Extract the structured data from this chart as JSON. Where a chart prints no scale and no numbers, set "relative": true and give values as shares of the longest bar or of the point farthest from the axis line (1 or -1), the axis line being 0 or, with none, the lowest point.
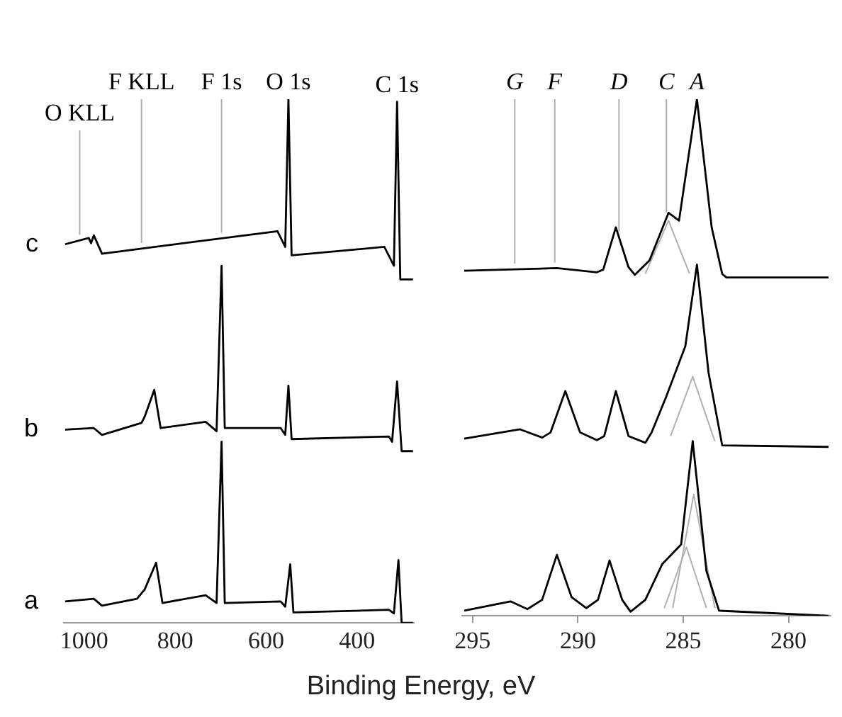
{
  "chart_data": [
    {
      "type": "line",
      "relative": true,
      "xlabel": "Binding Energy, eV",
      "xlim": [
        1045,
        275
      ],
      "xticks": [
        1000,
        800,
        600,
        400
      ],
      "grid": false,
      "legend": false,
      "marker": "none",
      "line_style": "solid",
      "series": [
        {
          "name": "c",
          "color": "#000000",
          "x": [
            1042,
            990,
            985,
            979,
            961,
            575,
            558,
            551,
            544,
            340,
            319,
            312,
            305,
            277
          ],
          "values": [
            0.723,
            0.735,
            0.725,
            0.74,
            0.705,
            0.748,
            0.718,
            1.0,
            0.702,
            0.718,
            0.682,
            0.995,
            0.656,
            0.656
          ]
        },
        {
          "name": "b",
          "color": "#000000",
          "x": [
            1042,
            979,
            961,
            874,
            867,
            846,
            832,
            733,
            709,
            698,
            691,
            568,
            558,
            551,
            544,
            330,
            323,
            312,
            302,
            277
          ],
          "values": [
            0.369,
            0.372,
            0.359,
            0.382,
            0.394,
            0.445,
            0.372,
            0.384,
            0.366,
            0.682,
            0.372,
            0.372,
            0.359,
            0.453,
            0.351,
            0.356,
            0.346,
            0.461,
            0.328,
            0.328
          ]
        },
        {
          "name": "a",
          "color": "#000000",
          "x": [
            1042,
            979,
            961,
            884,
            867,
            842,
            828,
            733,
            709,
            698,
            691,
            568,
            558,
            547,
            540,
            330,
            319,
            309,
            302,
            277
          ],
          "values": [
            0.041,
            0.046,
            0.033,
            0.046,
            0.064,
            0.115,
            0.038,
            0.053,
            0.038,
            0.346,
            0.038,
            0.041,
            0.031,
            0.112,
            0.02,
            0.025,
            0.018,
            0.12,
            0,
            0
          ]
        }
      ],
      "ref_lines": [
        {
          "axis": "x",
          "value": 698,
          "label": "F 1s",
          "color": "#b0b0b0"
        },
        {
          "axis": "x",
          "value": 874,
          "label": "F KLL",
          "color": "#b0b0b0"
        },
        {
          "axis": "x",
          "value": 1010,
          "label": "O KLL",
          "color": "#b0b0b0"
        }
      ],
      "annotations": [
        {
          "text": "O 1s",
          "x": 551,
          "y": 1.0
        },
        {
          "text": "C 1s",
          "x": 312,
          "y": 0.995
        }
      ]
    },
    {
      "type": "line",
      "relative": true,
      "xlim": [
        295.5,
        278
      ],
      "xticks": [
        295,
        290,
        285,
        280
      ],
      "grid": false,
      "legend": false,
      "marker": "none",
      "line_style": "solid",
      "series": [
        {
          "color": "#000000",
          "x": [
            295.4,
            291.0,
            289.1,
            288.8,
            288.2,
            287.6,
            287.3,
            286.6,
            285.7,
            285.2,
            284.35,
            283.65,
            283.15,
            282.95,
            278.1
          ],
          "values": [
            0.668,
            0.673,
            0.665,
            0.67,
            0.752,
            0.675,
            0.66,
            0.688,
            0.78,
            0.765,
            1.0,
            0.752,
            0.662,
            0.655,
            0.655
          ]
        },
        {
          "color": "#b0b0b0",
          "x": [
            286.8,
            285.7,
            284.7
          ],
          "values": [
            0.662,
            0.765,
            0.662
          ]
        },
        {
          "color": "#000000",
          "x": [
            295.4,
            292.75,
            291.7,
            291.3,
            290.6,
            289.9,
            289.1,
            288.75,
            288.2,
            287.6,
            286.8,
            286.5,
            285.8,
            284.9,
            284.35,
            283.8,
            283.15,
            278.1
          ],
          "values": [
            0.343,
            0.361,
            0.345,
            0.355,
            0.435,
            0.355,
            0.34,
            0.348,
            0.435,
            0.348,
            0.335,
            0.355,
            0.425,
            0.522,
            0.68,
            0.471,
            0.33,
            0.327
          ]
        },
        {
          "color": "#b0b0b0",
          "x": [
            285.6,
            284.55,
            283.5
          ],
          "values": [
            0.348,
            0.463,
            0.338
          ]
        },
        {
          "color": "#000000",
          "x": [
            295.4,
            293.2,
            292.4,
            291.7,
            291.0,
            290.3,
            289.6,
            289.05,
            288.5,
            287.9,
            287.5,
            286.8,
            286.0,
            285.1,
            284.55,
            283.9,
            283.3,
            278.1
          ],
          "values": [
            0.01,
            0.028,
            0.013,
            0.031,
            0.118,
            0.036,
            0.015,
            0.031,
            0.107,
            0.031,
            0.008,
            0.031,
            0.1,
            0.138,
            0.338,
            0.087,
            0.01,
            0
          ]
        },
        {
          "color": "#b0b0b0",
          "x": [
            285.5,
            284.5,
            283.5
          ],
          "values": [
            0.015,
            0.235,
            0.015
          ]
        },
        {
          "color": "#b0b0b0",
          "x": [
            285.9,
            284.85,
            283.9
          ],
          "values": [
            0.015,
            0.133,
            0.015
          ]
        }
      ],
      "ref_lines": [
        {
          "axis": "x",
          "value": 293.0,
          "label": "G",
          "color": "#b0b0b0"
        },
        {
          "axis": "x",
          "value": 291.1,
          "label": "F",
          "color": "#b0b0b0"
        },
        {
          "axis": "x",
          "value": 288.05,
          "label": "D",
          "color": "#b0b0b0"
        },
        {
          "axis": "x",
          "value": 285.8,
          "label": "C",
          "color": "#b0b0b0"
        }
      ],
      "annotations": [
        {
          "text": "A",
          "x": 284.35,
          "y": 1.0
        }
      ]
    }
  ]
}
